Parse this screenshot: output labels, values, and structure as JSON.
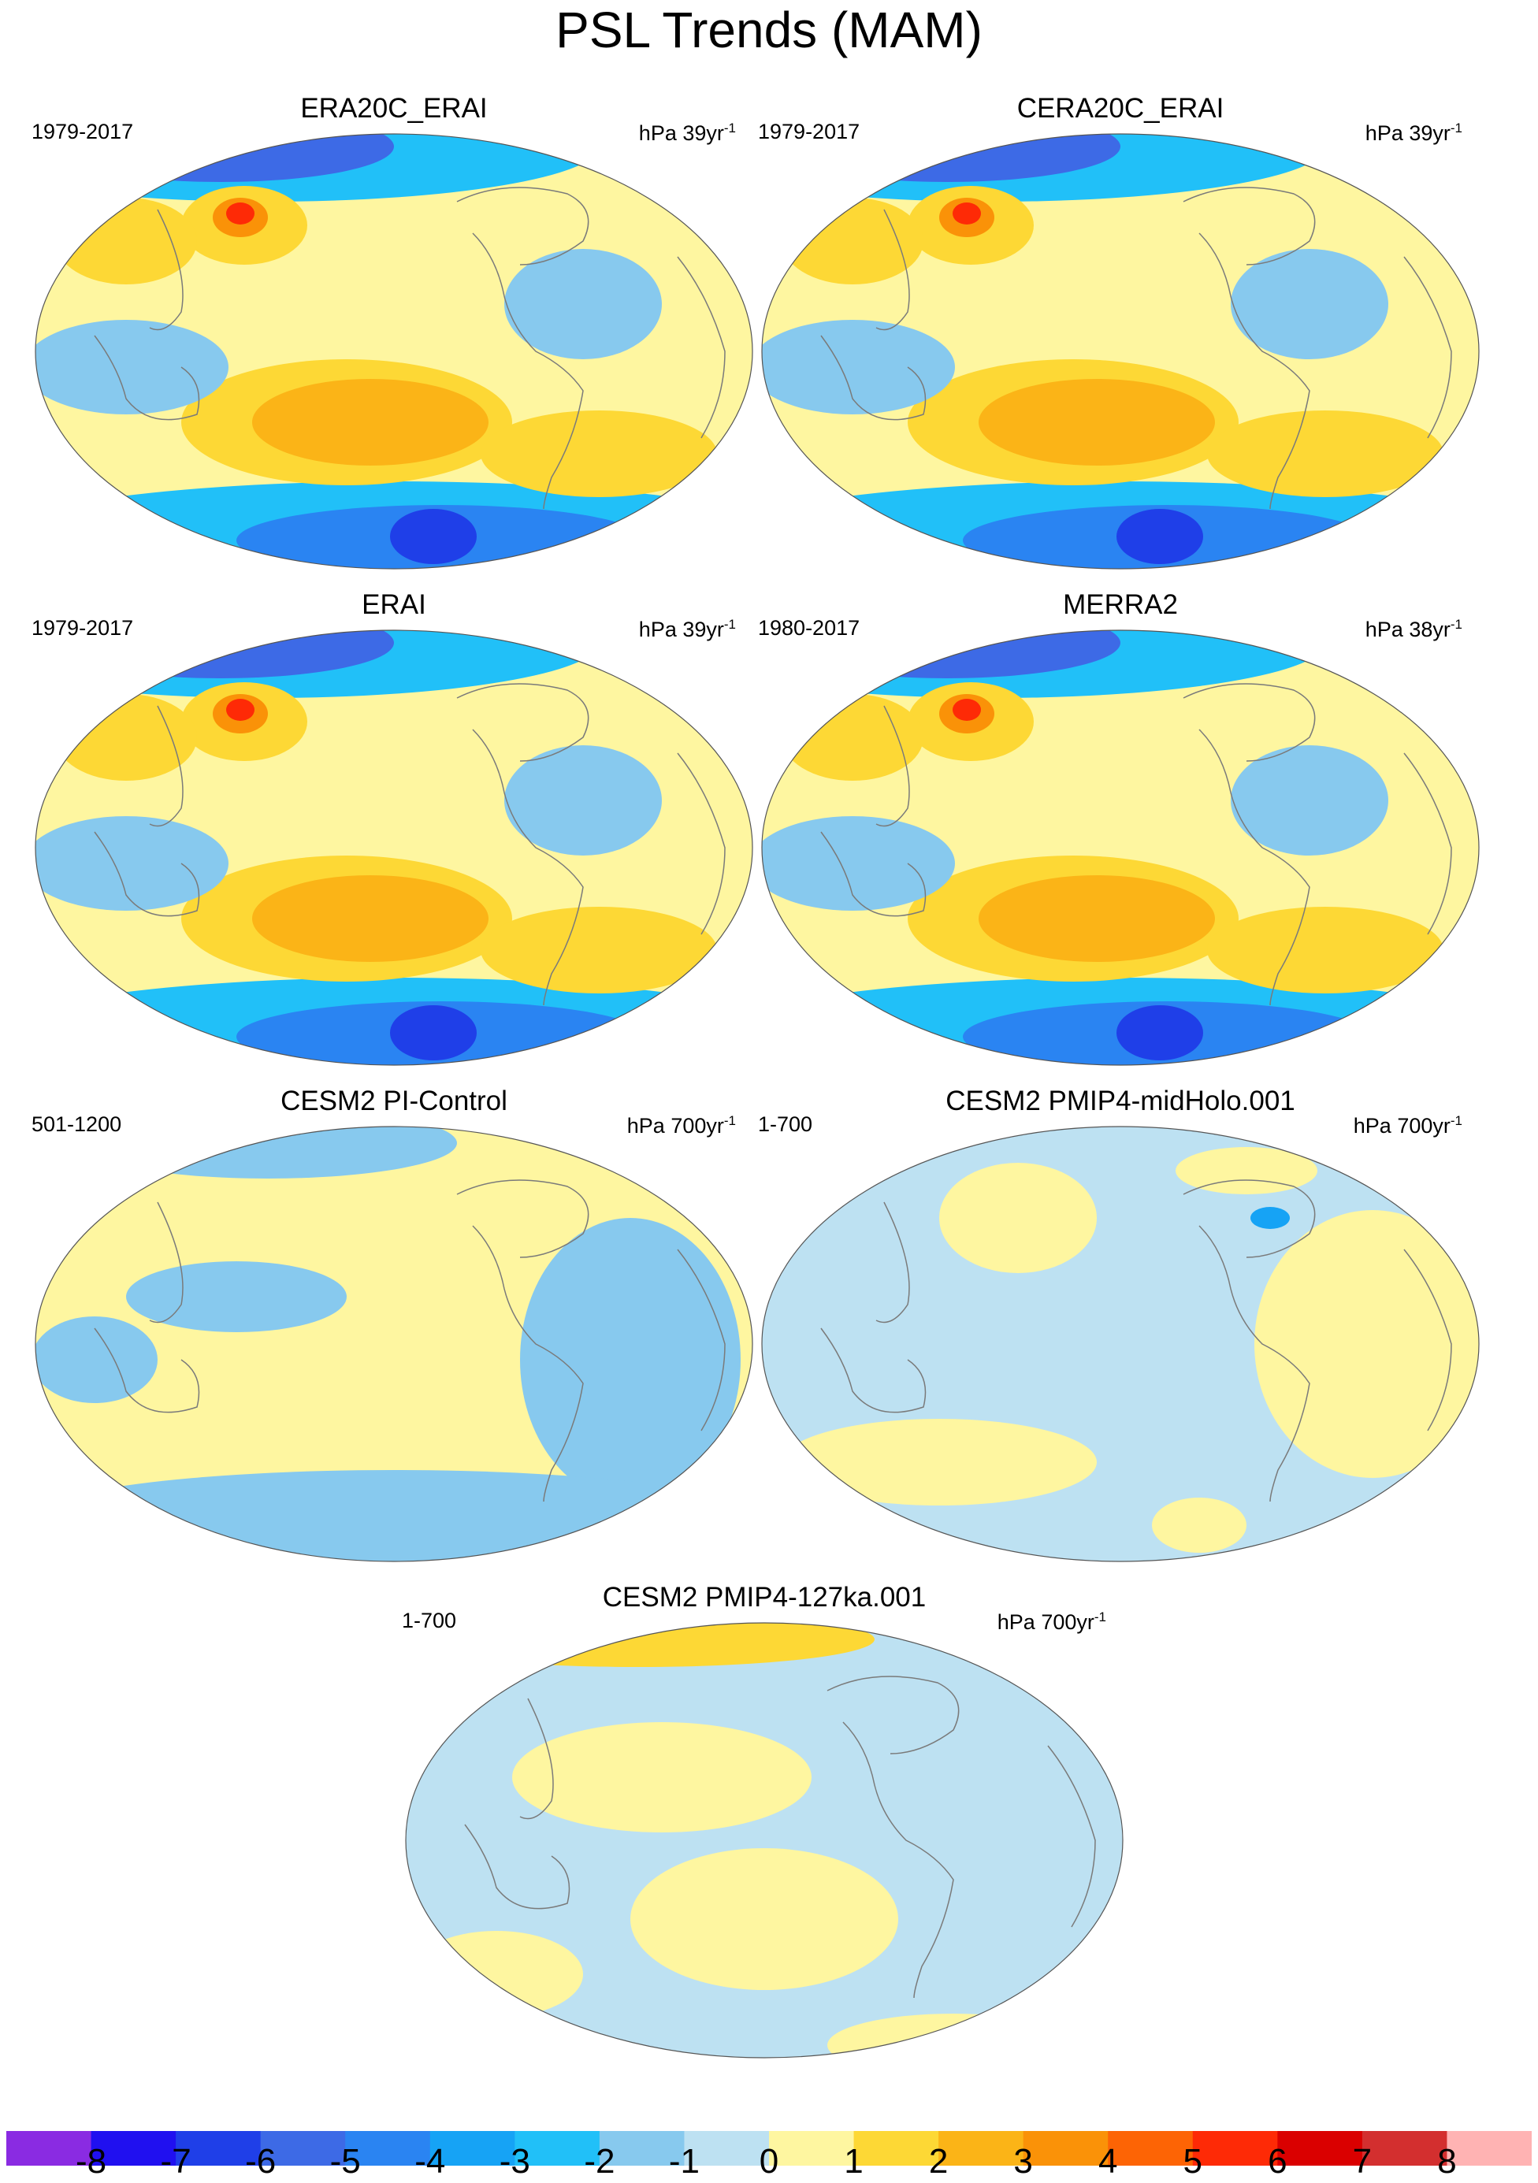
{
  "title": "PSL Trends (MAM)",
  "panels": [
    {
      "title": "ERA20C_ERAI",
      "years": "1979-2017",
      "units": "hPa 39yr",
      "units_exp": "-1",
      "pattern": "reanalysis",
      "dominant_fill": "#fef6a0"
    },
    {
      "title": "CERA20C_ERAI",
      "years": "1979-2017",
      "units": "hPa 39yr",
      "units_exp": "-1",
      "pattern": "reanalysis",
      "dominant_fill": "#fef6a0"
    },
    {
      "title": "ERAI",
      "years": "1979-2017",
      "units": "hPa 39yr",
      "units_exp": "-1",
      "pattern": "reanalysis",
      "dominant_fill": "#fef6a0"
    },
    {
      "title": "MERRA2",
      "years": "1980-2017",
      "units": "hPa 38yr",
      "units_exp": "-1",
      "pattern": "reanalysis",
      "dominant_fill": "#fef6a0"
    },
    {
      "title": "CESM2 PI-Control",
      "years": "501-1200",
      "units": "hPa 700yr",
      "units_exp": "-1",
      "pattern": "model",
      "dominant_fill": "#fef6a0"
    },
    {
      "title": "CESM2 PMIP4-midHolo.001",
      "years": "1-700",
      "units": "hPa 700yr",
      "units_exp": "-1",
      "pattern": "model",
      "dominant_fill": "#bde1f2"
    },
    {
      "title": "CESM2 PMIP4-127ka.001",
      "years": "1-700",
      "units": "hPa 700yr",
      "units_exp": "-1",
      "pattern": "model",
      "dominant_fill": "#bde1f2"
    }
  ],
  "chart_data": {
    "type": "heatmap",
    "projection": "global map (elliptical)",
    "variable": "PSL trend",
    "season": "MAM",
    "colorbar": {
      "labels": [
        "-8",
        "-7",
        "-6",
        "-5",
        "-4",
        "-3",
        "-2",
        "-1",
        "0",
        "1",
        "2",
        "3",
        "4",
        "5",
        "6",
        "7",
        "8"
      ],
      "levels": [
        -8,
        -7,
        -6,
        -5,
        -4,
        -3,
        -2,
        -1,
        0,
        1,
        2,
        3,
        4,
        5,
        6,
        7,
        8
      ],
      "colors": [
        "#8a2be2",
        "#2010f0",
        "#1f3fe8",
        "#3d6ae6",
        "#2a84f2",
        "#16a3f5",
        "#21c0f8",
        "#87c9ee",
        "#bde1f2",
        "#fef6a0",
        "#fdd835",
        "#fbb417",
        "#fa9208",
        "#fd6405",
        "#fe2a06",
        "#da0000",
        "#d32f2f",
        "#ffb3b3"
      ]
    }
  }
}
